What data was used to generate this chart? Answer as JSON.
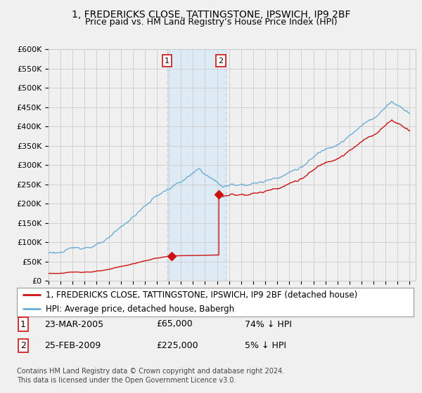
{
  "title": "1, FREDERICKS CLOSE, TATTINGSTONE, IPSWICH, IP9 2BF",
  "subtitle": "Price paid vs. HM Land Registry’s House Price Index (HPI)",
  "ylabel_ticks": [
    "£0",
    "£50K",
    "£100K",
    "£150K",
    "£200K",
    "£250K",
    "£300K",
    "£350K",
    "£400K",
    "£450K",
    "£500K",
    "£550K",
    "£600K"
  ],
  "ytick_values": [
    0,
    50000,
    100000,
    150000,
    200000,
    250000,
    300000,
    350000,
    400000,
    450000,
    500000,
    550000,
    600000
  ],
  "xlim_start": 1995.0,
  "xlim_end": 2025.5,
  "ylim": [
    0,
    600000
  ],
  "sale1_x": 2005.22,
  "sale1_y": 65000,
  "sale2_x": 2009.15,
  "sale2_y": 225000,
  "highlight_x1": 2004.9,
  "highlight_x2": 2009.7,
  "legend_line1": "1, FREDERICKS CLOSE, TATTINGSTONE, IPSWICH, IP9 2BF (detached house)",
  "legend_line2": "HPI: Average price, detached house, Babergh",
  "table_row1": [
    "1",
    "23-MAR-2005",
    "£65,000",
    "74% ↓ HPI"
  ],
  "table_row2": [
    "2",
    "25-FEB-2009",
    "£225,000",
    "5% ↓ HPI"
  ],
  "footer": "Contains HM Land Registry data © Crown copyright and database right 2024.\nThis data is licensed under the Open Government Licence v3.0.",
  "hpi_color": "#6baed6",
  "sold_color": "#cc1111",
  "highlight_color": "#deeaf4",
  "highlight_border_color": "#c0d0e0",
  "background_color": "#f0f0f0",
  "plot_bg_color": "#f0f0f0",
  "grid_color": "#cccccc",
  "title_fontsize": 10,
  "subtitle_fontsize": 9,
  "tick_fontsize": 8,
  "legend_fontsize": 8.5,
  "table_fontsize": 9,
  "footer_fontsize": 7
}
